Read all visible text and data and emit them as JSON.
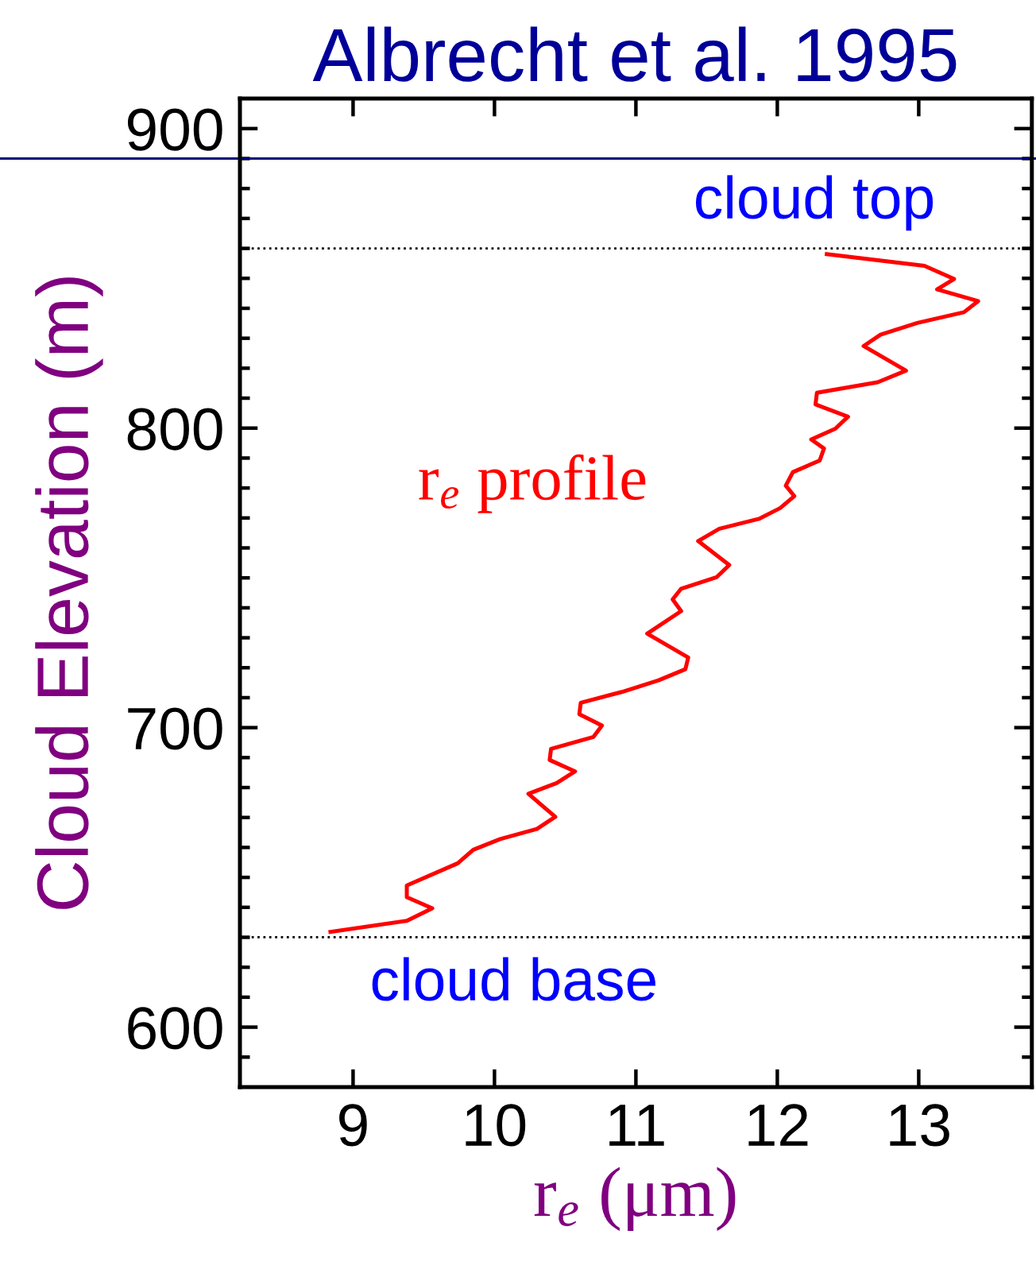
{
  "chart_data": {
    "type": "line",
    "title": "Albrecht et al. 1995",
    "xlabel": "r$_{e}$ (μm)",
    "ylabel": "Cloud Elevation (m)",
    "xlim": [
      8.2,
      13.8
    ],
    "xticks": [
      9,
      10,
      11,
      12,
      13
    ],
    "ylim": [
      580,
      910
    ],
    "yticks": [
      {
        "value": 590,
        "label": null
      },
      600,
      {
        "value": 610,
        "label": null
      },
      {
        "value": 620,
        "label": null
      },
      {
        "value": 630,
        "label": null
      },
      {
        "value": 640,
        "label": null
      },
      {
        "value": 650,
        "label": null
      },
      {
        "value": 660,
        "label": null
      },
      {
        "value": 670,
        "label": null
      },
      {
        "value": 680,
        "label": null
      },
      {
        "value": 690,
        "label": null
      },
      700,
      {
        "value": 710,
        "label": null
      },
      {
        "value": 720,
        "label": null
      },
      {
        "value": 730,
        "label": null
      },
      {
        "value": 740,
        "label": null
      },
      {
        "value": 750,
        "label": null
      },
      {
        "value": 760,
        "label": null
      },
      {
        "value": 770,
        "label": null
      },
      {
        "value": 780,
        "label": null
      },
      {
        "value": 790,
        "label": null
      },
      800,
      {
        "value": 810,
        "label": null
      },
      {
        "value": 820,
        "label": null
      },
      {
        "value": 830,
        "label": null
      },
      {
        "value": 840,
        "label": null
      },
      {
        "value": 850,
        "label": null
      },
      {
        "value": 860,
        "label": null
      },
      {
        "value": 870,
        "label": null
      },
      {
        "value": 880,
        "label": null
      },
      {
        "value": 890,
        "label": null
      },
      900
    ],
    "line_style": "solid",
    "series": [
      {
        "name": "r$_{e}$ profile",
        "color": "#ff0000",
        "x": [
          8.84,
          9.38,
          9.56,
          9.38,
          9.38,
          9.74,
          9.85,
          10.04,
          10.3,
          10.43,
          10.24,
          10.44,
          10.57,
          10.39,
          10.4,
          10.7,
          10.76,
          10.6,
          10.61,
          10.9,
          11.16,
          11.35,
          11.37,
          11.08,
          11.32,
          11.26,
          11.32,
          11.57,
          11.66,
          11.44,
          11.59,
          11.87,
          12.02,
          12.12,
          12.06,
          12.11,
          12.3,
          12.33,
          12.24,
          12.41,
          12.5,
          12.27,
          12.28,
          12.71,
          12.91,
          12.61,
          12.73,
          12.99,
          13.32,
          13.42,
          13.13,
          13.25,
          13.04,
          12.35
        ],
        "values": [
          631.8,
          635.5,
          639.7,
          643.4,
          647.3,
          654.7,
          659.2,
          662.8,
          666.2,
          670.2,
          677.9,
          681.5,
          685.4,
          689.2,
          692.9,
          696.9,
          700.7,
          704.5,
          708.3,
          711.9,
          715.8,
          719.5,
          723.4,
          731.4,
          738.9,
          742.8,
          746.4,
          750.2,
          754.3,
          762.3,
          766.4,
          769.7,
          773.3,
          777.3,
          780.8,
          785.3,
          789.2,
          793.2,
          796.2,
          799.8,
          803.8,
          807.9,
          811.8,
          815.3,
          819.2,
          827.4,
          831.2,
          835.1,
          838.7,
          842.4,
          846.3,
          849.8,
          854.2,
          858.1
        ]
      }
    ],
    "ref_lines": [
      {
        "axis": "y",
        "value": 860,
        "label": "cloud top",
        "color": "#000000",
        "line_style": "dotted"
      },
      {
        "axis": "y",
        "value": 630,
        "label": "cloud base",
        "color": "#000000",
        "line_style": "dotted"
      },
      {
        "axis": "y",
        "value": 890,
        "color": "#000080",
        "line_style": "solid"
      }
    ]
  }
}
